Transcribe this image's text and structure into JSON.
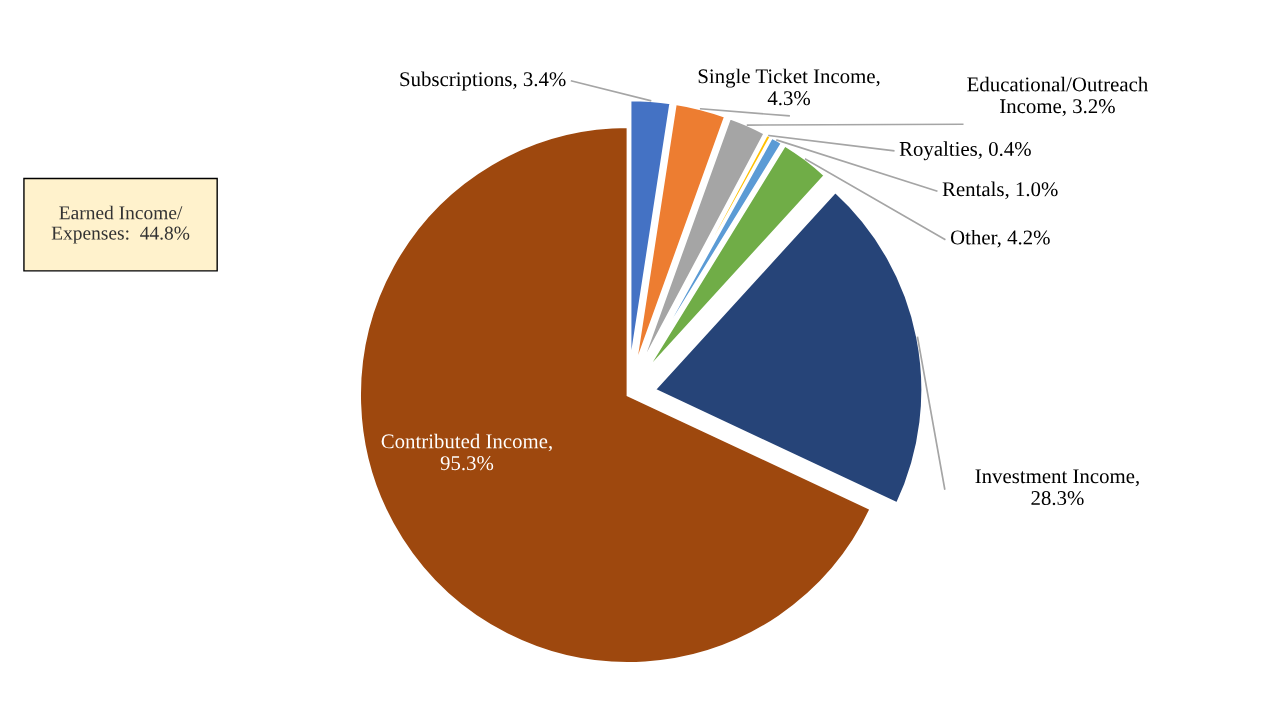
{
  "chart_data": {
    "type": "pie",
    "categories": [
      "Subscriptions, 3.4%",
      "Single Ticket Income, 4.3%",
      "Educational/Outreach Income, 3.2%",
      "Royalties, 0.4%",
      "Rentals, 1.0%",
      "Other, 4.2%",
      "Investment Income, 28.3%",
      "Contributed Income, 95.3%"
    ],
    "values": [
      3.4,
      4.3,
      3.2,
      0.4,
      1.0,
      4.2,
      28.3,
      95.3
    ],
    "colors": [
      "#4472c4",
      "#ed7d31",
      "#a5a5a5",
      "#ffc000",
      "#5b9bd5",
      "#70ad47",
      "#264478",
      "#9e480e"
    ],
    "annotations": [
      "Earned Income/\nExpenses:  44.8%"
    ],
    "legend": false
  }
}
